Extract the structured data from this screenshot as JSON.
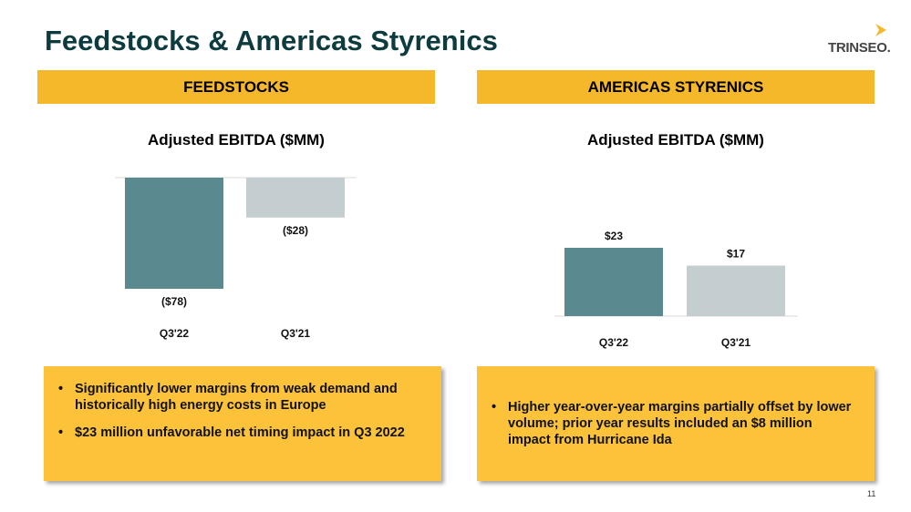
{
  "page": {
    "title": "Feedstocks & Americas Styrenics",
    "logo_text": "TRINSEO.",
    "page_number": "11"
  },
  "colors": {
    "header_bg": "#f5b82a",
    "note_bg": "#fcc33a",
    "bar_primary": "#5a8a8f",
    "bar_secondary": "#c4cdd0",
    "title_color": "#0d3b3e",
    "logo_mark": "#f5b82a"
  },
  "sections": [
    {
      "header": "FEEDSTOCKS",
      "notes": [
        "Significantly lower margins from weak demand and historically high energy costs in Europe",
        "$23 million unfavorable net timing impact in Q3 2022"
      ]
    },
    {
      "header": "AMERICAS STYRENICS",
      "notes": [
        "Higher year-over-year margins partially offset by lower volume; prior year results included an $8 million impact from Hurricane Ida"
      ]
    }
  ],
  "chart_data": [
    {
      "type": "bar",
      "title": "Adjusted EBITDA ($MM)",
      "categories": [
        "Q3'22",
        "Q3'21"
      ],
      "values": [
        -78,
        -28
      ],
      "data_labels": [
        "($78)",
        "($28)"
      ],
      "ylim": [
        -85,
        0
      ],
      "grid": false,
      "legend": "none"
    },
    {
      "type": "bar",
      "title": "Adjusted EBITDA ($MM)",
      "categories": [
        "Q3'22",
        "Q3'21"
      ],
      "values": [
        23,
        17
      ],
      "data_labels": [
        "$23",
        "$17"
      ],
      "ylim": [
        0,
        50
      ],
      "grid": false,
      "legend": "none"
    }
  ]
}
